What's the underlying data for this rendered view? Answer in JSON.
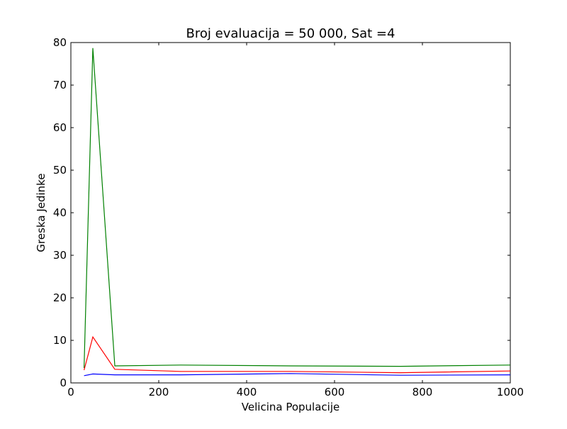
{
  "chart_data": {
    "type": "line",
    "title": "Broj evaluacija = 50 000, Sat =4",
    "xlabel": "Velicina Populacije",
    "ylabel": "Greska Jedinke",
    "xlim": [
      0,
      1000
    ],
    "ylim": [
      0,
      80
    ],
    "xticks": [
      0,
      200,
      400,
      600,
      800,
      1000
    ],
    "yticks": [
      0,
      10,
      20,
      30,
      40,
      50,
      60,
      70,
      80
    ],
    "grid": false,
    "legend": "none",
    "x": [
      30,
      50,
      100,
      250,
      500,
      750,
      1000
    ],
    "series": [
      {
        "color": "#008000",
        "values": [
          3.5,
          78.7,
          4.0,
          4.2,
          4.0,
          3.9,
          4.2
        ]
      },
      {
        "color": "#ff0000",
        "values": [
          3.0,
          10.8,
          3.2,
          2.7,
          2.7,
          2.4,
          2.8
        ]
      },
      {
        "color": "#0000ff",
        "values": [
          1.7,
          2.1,
          1.9,
          1.9,
          2.2,
          1.8,
          1.9
        ]
      }
    ]
  }
}
